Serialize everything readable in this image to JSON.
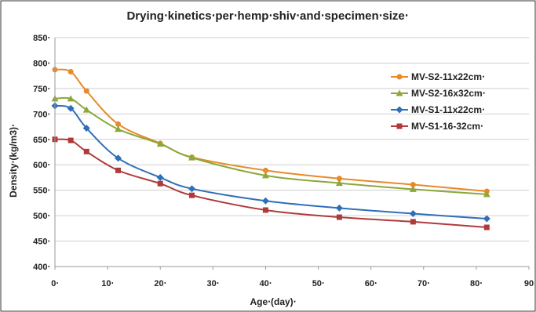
{
  "chart_data": {
    "type": "line",
    "title": "Drying‧kinetics‧per‧hemp‧shiv‧and‧specimen‧size‧",
    "xlabel": "Age‧(day)‧",
    "ylabel": "Density‧(kg/m3)‧",
    "xlim": [
      0,
      90
    ],
    "ylim": [
      400,
      850
    ],
    "x_ticks": [
      0,
      10,
      20,
      30,
      40,
      50,
      60,
      70,
      80,
      90
    ],
    "y_ticks": [
      400,
      450,
      500,
      550,
      600,
      650,
      700,
      750,
      800,
      850
    ],
    "x_tick_labels": [
      "0‧",
      "10‧",
      "20‧",
      "30‧",
      "40‧",
      "50‧",
      "60‧",
      "70‧",
      "80‧",
      "90"
    ],
    "y_tick_labels": [
      "400‧",
      "450‧",
      "500‧",
      "550‧",
      "600‧",
      "650‧",
      "700‧",
      "750‧",
      "800‧",
      "850‧"
    ],
    "grid": true,
    "legend_position": "right",
    "series": [
      {
        "name": "MV-S2-11x22cm‧",
        "color": "#E8892A",
        "marker": "circle",
        "x": [
          0,
          3,
          6,
          12,
          20,
          26,
          40,
          54,
          68,
          82
        ],
        "y": [
          787,
          783,
          745,
          680,
          642,
          615,
          589,
          573,
          561,
          548
        ]
      },
      {
        "name": "MV-S2-16x32cm‧",
        "color": "#8BA83A",
        "marker": "triangle",
        "x": [
          0,
          3,
          6,
          12,
          20,
          26,
          40,
          54,
          68,
          82
        ],
        "y": [
          730,
          730,
          708,
          670,
          641,
          614,
          579,
          564,
          552,
          542
        ]
      },
      {
        "name": "MV-S1-11x22cm‧",
        "color": "#2F6FB8",
        "marker": "diamond",
        "x": [
          0,
          3,
          6,
          12,
          20,
          26,
          40,
          54,
          68,
          82
        ],
        "y": [
          716,
          711,
          672,
          613,
          575,
          553,
          529,
          515,
          504,
          494
        ]
      },
      {
        "name": "MV-S1-16-32cm‧",
        "color": "#B03A3A",
        "marker": "square",
        "x": [
          0,
          3,
          6,
          12,
          20,
          26,
          40,
          54,
          68,
          82
        ],
        "y": [
          650,
          648,
          626,
          589,
          563,
          540,
          511,
          497,
          488,
          477
        ]
      }
    ]
  }
}
